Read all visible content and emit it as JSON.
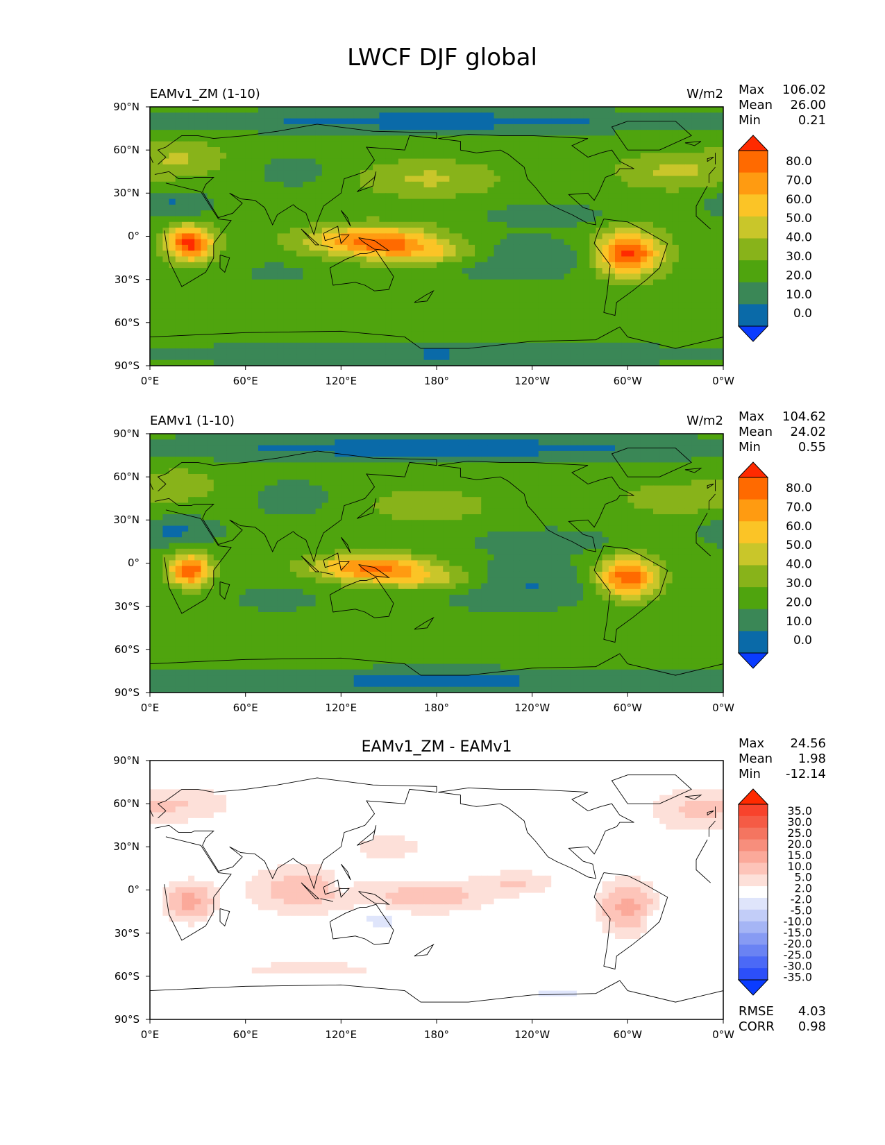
{
  "figure": {
    "title": "LWCF DJF global"
  },
  "chart_data": [
    {
      "type": "heatmap",
      "title": "EAMv1_ZM (1-10)",
      "units": "W/m2",
      "stats": {
        "max_label": "Max",
        "max": "106.02",
        "mean_label": "Mean",
        "mean": "26.00",
        "min_label": "Min",
        "min": "0.21"
      },
      "x_ticks": [
        "0°E",
        "60°E",
        "120°E",
        "180°",
        "120°W",
        "60°W",
        "0°W"
      ],
      "y_ticks": [
        "90°N",
        "60°N",
        "30°N",
        "0°",
        "30°S",
        "60°S",
        "90°S"
      ],
      "xlim": [
        0,
        360
      ],
      "ylim": [
        -90,
        90
      ],
      "colorbar": {
        "levels": [
          "80.0",
          "70.0",
          "60.0",
          "50.0",
          "40.0",
          "30.0",
          "20.0",
          "10.0",
          "0.0"
        ],
        "colors": [
          "#ff2a00",
          "#ff6a00",
          "#ff9b11",
          "#fbc426",
          "#c9c62a",
          "#88b31a",
          "#4fa40e",
          "#3a8756",
          "#0a6aa8",
          "#0a3cff"
        ]
      },
      "field": {
        "background_value": 25,
        "blobs": [
          {
            "lon": 25,
            "lat": -5,
            "rlon": 14,
            "rlat": 12,
            "val": 60
          },
          {
            "lon": 300,
            "lat": -12,
            "rlon": 20,
            "rlat": 15,
            "val": 60
          },
          {
            "lon": 140,
            "lat": -3,
            "rlon": 40,
            "rlat": 10,
            "val": 48
          },
          {
            "lon": 175,
            "lat": -12,
            "rlon": 40,
            "rlat": 8,
            "val": 25
          },
          {
            "lon": 175,
            "lat": 40,
            "rlon": 40,
            "rlat": 12,
            "val": 17
          },
          {
            "lon": 330,
            "lat": 45,
            "rlon": 35,
            "rlat": 12,
            "val": 17
          },
          {
            "lon": 20,
            "lat": 55,
            "rlon": 25,
            "rlat": 12,
            "val": 15
          },
          {
            "lon": 230,
            "lat": -15,
            "rlon": 50,
            "rlat": 15,
            "val": -16
          },
          {
            "lon": 80,
            "lat": -25,
            "rlon": 30,
            "rlat": 10,
            "val": -7
          },
          {
            "lon": 15,
            "lat": 22,
            "rlon": 25,
            "rlat": 10,
            "val": -16
          },
          {
            "lon": 90,
            "lat": 45,
            "rlon": 20,
            "rlat": 10,
            "val": -13
          },
          {
            "lon": 250,
            "lat": 15,
            "rlon": 40,
            "rlat": 8,
            "val": -12
          },
          {
            "lon": 180,
            "lat": 80,
            "rlon": 180,
            "rlat": 8,
            "val": -20
          },
          {
            "lon": 180,
            "lat": -82,
            "rlon": 180,
            "rlat": 8,
            "val": -16
          }
        ]
      }
    },
    {
      "type": "heatmap",
      "title": "EAMv1 (1-10)",
      "units": "W/m2",
      "stats": {
        "max_label": "Max",
        "max": "104.62",
        "mean_label": "Mean",
        "mean": "24.02",
        "min_label": "Min",
        "min": "0.55"
      },
      "x_ticks": [
        "0°E",
        "60°E",
        "120°E",
        "180°",
        "120°W",
        "60°W",
        "0°W"
      ],
      "y_ticks": [
        "90°N",
        "60°N",
        "30°N",
        "0°",
        "30°S",
        "60°S",
        "90°S"
      ],
      "xlim": [
        0,
        360
      ],
      "ylim": [
        -90,
        90
      ],
      "colorbar": {
        "levels": [
          "80.0",
          "70.0",
          "60.0",
          "50.0",
          "40.0",
          "30.0",
          "20.0",
          "10.0",
          "0.0"
        ],
        "colors": [
          "#ff2a00",
          "#ff6a00",
          "#ff9b11",
          "#fbc426",
          "#c9c62a",
          "#88b31a",
          "#4fa40e",
          "#3a8756",
          "#0a6aa8",
          "#0a3cff"
        ]
      },
      "field": {
        "background_value": 23,
        "blobs": [
          {
            "lon": 25,
            "lat": -5,
            "rlon": 13,
            "rlat": 11,
            "val": 56
          },
          {
            "lon": 300,
            "lat": -10,
            "rlon": 19,
            "rlat": 14,
            "val": 56
          },
          {
            "lon": 140,
            "lat": -3,
            "rlon": 38,
            "rlat": 9,
            "val": 48
          },
          {
            "lon": 175,
            "lat": -12,
            "rlon": 40,
            "rlat": 8,
            "val": 22
          },
          {
            "lon": 175,
            "lat": 40,
            "rlon": 40,
            "rlat": 12,
            "val": 15
          },
          {
            "lon": 330,
            "lat": 45,
            "rlon": 35,
            "rlat": 12,
            "val": 15
          },
          {
            "lon": 20,
            "lat": 55,
            "rlon": 25,
            "rlat": 12,
            "val": 13
          },
          {
            "lon": 230,
            "lat": -15,
            "rlon": 50,
            "rlat": 15,
            "val": -15
          },
          {
            "lon": 80,
            "lat": -25,
            "rlon": 30,
            "rlat": 10,
            "val": -6
          },
          {
            "lon": 15,
            "lat": 22,
            "rlon": 25,
            "rlat": 10,
            "val": -15
          },
          {
            "lon": 90,
            "lat": 45,
            "rlon": 20,
            "rlat": 10,
            "val": -13
          },
          {
            "lon": 250,
            "lat": 15,
            "rlon": 40,
            "rlat": 8,
            "val": -11
          },
          {
            "lon": 180,
            "lat": 80,
            "rlon": 180,
            "rlat": 8,
            "val": -19
          },
          {
            "lon": 180,
            "lat": -82,
            "rlon": 180,
            "rlat": 8,
            "val": -15
          }
        ]
      }
    },
    {
      "type": "heatmap",
      "title": "EAMv1_ZM - EAMv1",
      "units": "",
      "stats": {
        "max_label": "Max",
        "max": "24.56",
        "mean_label": "Mean",
        "mean": "1.98",
        "min_label": "Min",
        "min": "-12.14"
      },
      "metrics": {
        "rmse_label": "RMSE",
        "rmse": "4.03",
        "corr_label": "CORR",
        "corr": "0.98"
      },
      "x_ticks": [
        "0°E",
        "60°E",
        "120°E",
        "180°",
        "120°W",
        "60°W",
        "0°W"
      ],
      "y_ticks": [
        "90°N",
        "60°N",
        "30°N",
        "0°",
        "30°S",
        "60°S",
        "90°S"
      ],
      "xlim": [
        0,
        360
      ],
      "ylim": [
        -90,
        90
      ],
      "colorbar": {
        "levels": [
          "35.0",
          "30.0",
          "25.0",
          "20.0",
          "15.0",
          "10.0",
          "5.0",
          "2.0",
          "-2.0",
          "-5.0",
          "-10.0",
          "-15.0",
          "-20.0",
          "-25.0",
          "-30.0",
          "-35.0"
        ],
        "colors": [
          "#ff2a00",
          "#f8432c",
          "#f55b45",
          "#f47560",
          "#f78e7c",
          "#fba99a",
          "#fdc4b9",
          "#fde0d9",
          "#ffffff",
          "#dfe5fb",
          "#c2cdf8",
          "#a5b5f5",
          "#879bf3",
          "#6a83f3",
          "#4b69f6",
          "#2c4ff9",
          "#0a3cff"
        ]
      },
      "field": {
        "background_value": 0,
        "blobs": [
          {
            "lon": 25,
            "lat": -8,
            "rlon": 14,
            "rlat": 12,
            "val": 12
          },
          {
            "lon": 300,
            "lat": -12,
            "rlon": 16,
            "rlat": 16,
            "val": 12
          },
          {
            "lon": 95,
            "lat": 0,
            "rlon": 30,
            "rlat": 15,
            "val": 8
          },
          {
            "lon": 175,
            "lat": -5,
            "rlon": 35,
            "rlat": 10,
            "val": 8
          },
          {
            "lon": 230,
            "lat": 5,
            "rlon": 25,
            "rlat": 8,
            "val": 5
          },
          {
            "lon": 20,
            "lat": 60,
            "rlon": 30,
            "rlat": 12,
            "val": 5
          },
          {
            "lon": 340,
            "lat": 55,
            "rlon": 25,
            "rlat": 15,
            "val": 5
          },
          {
            "lon": 150,
            "lat": 30,
            "rlon": 20,
            "rlat": 10,
            "val": 4
          },
          {
            "lon": 100,
            "lat": -55,
            "rlon": 60,
            "rlat": 6,
            "val": 3
          },
          {
            "lon": 120,
            "lat": 5,
            "rlon": 6,
            "rlat": 6,
            "val": -6
          },
          {
            "lon": 145,
            "lat": -20,
            "rlon": 10,
            "rlat": 6,
            "val": -5
          },
          {
            "lon": 315,
            "lat": -20,
            "rlon": 8,
            "rlat": 6,
            "val": -5
          },
          {
            "lon": 255,
            "lat": -72,
            "rlon": 20,
            "rlat": 4,
            "val": -3
          }
        ]
      }
    }
  ]
}
